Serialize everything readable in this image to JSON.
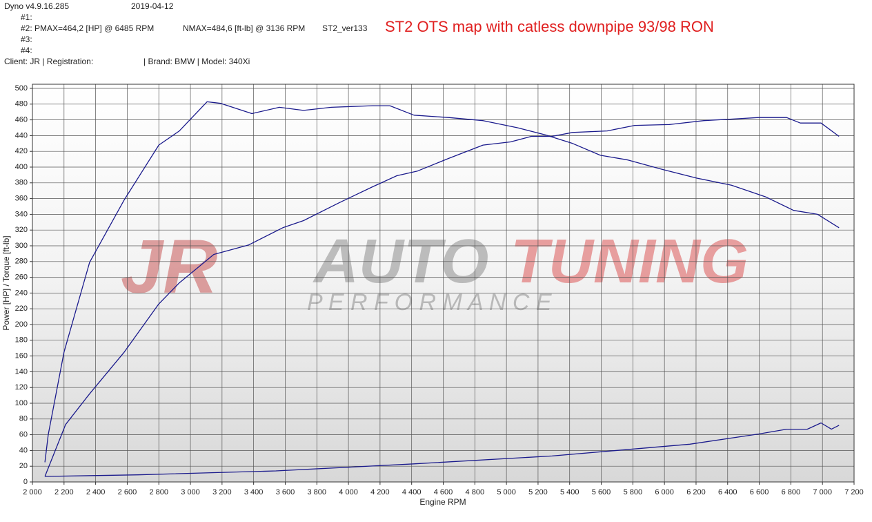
{
  "header": {
    "software": "Dyno v4.9.16.285",
    "date": "2019-04-12",
    "run1": "#1:",
    "run2": "#2: PMAX=464,2 [HP] @ 6485 RPM",
    "run2_torque": "NMAX=484,6 [ft-lb] @ 3136 RPM",
    "run2_file": "ST2_ver133",
    "run3": "#3:",
    "run4": "#4:",
    "client": "Client: JR | Registration:",
    "vehicle": "| Brand: BMW | Model: 340Xi"
  },
  "watermark": {
    "logo": "JR",
    "word1": "AUTO",
    "word2": "TUNING",
    "tagline": "P E R F O R M A N C E"
  },
  "chart_data": {
    "type": "line",
    "title": "ST2 OTS map with catless downpipe 93/98 RON",
    "xlabel": "Engine RPM",
    "ylabel": "Power [HP] / Torque [ft-lb]",
    "xlim": [
      2000,
      7200
    ],
    "ylim": [
      0,
      500
    ],
    "grid": true,
    "xticks": [
      {
        "value": 2000,
        "label": "2 000"
      },
      {
        "value": 2200,
        "label": "2 200"
      },
      {
        "value": 2400,
        "label": "2 400"
      },
      {
        "value": 2600,
        "label": "2 600"
      },
      {
        "value": 2800,
        "label": "2 800"
      },
      {
        "value": 3000,
        "label": "3 000"
      },
      {
        "value": 3200,
        "label": "3 200"
      },
      {
        "value": 3400,
        "label": "3 400"
      },
      {
        "value": 3600,
        "label": "3 600"
      },
      {
        "value": 3800,
        "label": "3 800"
      },
      {
        "value": 4000,
        "label": "4 000"
      },
      {
        "value": 4200,
        "label": "4 200"
      },
      {
        "value": 4400,
        "label": "4 400"
      },
      {
        "value": 4600,
        "label": "4 600"
      },
      {
        "value": 4800,
        "label": "4 800"
      },
      {
        "value": 5000,
        "label": "5 000"
      },
      {
        "value": 5200,
        "label": "5 200"
      },
      {
        "value": 5400,
        "label": "5 400"
      },
      {
        "value": 5600,
        "label": "5 600"
      },
      {
        "value": 5800,
        "label": "5 800"
      },
      {
        "value": 6000,
        "label": "6 000"
      },
      {
        "value": 6200,
        "label": "6 200"
      },
      {
        "value": 6400,
        "label": "6 400"
      },
      {
        "value": 6600,
        "label": "6 600"
      },
      {
        "value": 6800,
        "label": "6 800"
      },
      {
        "value": 7000,
        "label": "7 000"
      },
      {
        "value": 7200,
        "label": "7 200"
      }
    ],
    "yticks": [
      0,
      20,
      40,
      60,
      80,
      100,
      120,
      140,
      160,
      180,
      200,
      220,
      240,
      260,
      280,
      300,
      320,
      340,
      360,
      380,
      400,
      420,
      440,
      460,
      480,
      500
    ],
    "series": [
      {
        "color": "#1a1a8c",
        "x": [
          2079,
          2100,
          2200,
          2362,
          2580,
          2800,
          2930,
          3105,
          3192,
          3389,
          3563,
          3716,
          3891,
          4153,
          4262,
          4415,
          4633,
          4852,
          5070,
          5245,
          5419,
          5594,
          5769,
          5987,
          6205,
          6424,
          6642,
          6817,
          6969,
          7105
        ],
        "values": [
          25,
          60,
          165,
          279,
          358,
          428,
          446,
          483,
          481,
          468,
          476,
          472,
          476,
          478,
          478,
          466,
          463,
          459,
          450,
          441,
          430,
          415,
          409,
          397,
          386,
          377,
          362,
          345,
          340,
          323
        ]
      },
      {
        "color": "#1a1a8c",
        "x": [
          2079,
          2210,
          2362,
          2581,
          2799,
          2930,
          3148,
          3367,
          3585,
          3716,
          3934,
          4153,
          4306,
          4437,
          4633,
          4852,
          5026,
          5157,
          5288,
          5419,
          5638,
          5812,
          6031,
          6249,
          6424,
          6598,
          6773,
          6860,
          6991,
          7105
        ],
        "values": [
          7,
          73,
          112,
          165,
          226,
          253,
          289,
          301,
          323,
          332,
          354,
          375,
          389,
          395,
          411,
          428,
          432,
          439,
          439,
          444,
          446,
          453,
          454,
          459,
          461,
          463,
          463,
          456,
          456,
          439
        ]
      },
      {
        "color": "#1a1a8c",
        "x": [
          2079,
          2668,
          3541,
          4415,
          5288,
          6161,
          6598,
          6773,
          6904,
          6991,
          7057,
          7105
        ],
        "values": [
          7,
          9,
          14,
          23,
          33,
          48,
          61,
          67,
          67,
          75,
          67,
          72
        ]
      }
    ]
  }
}
